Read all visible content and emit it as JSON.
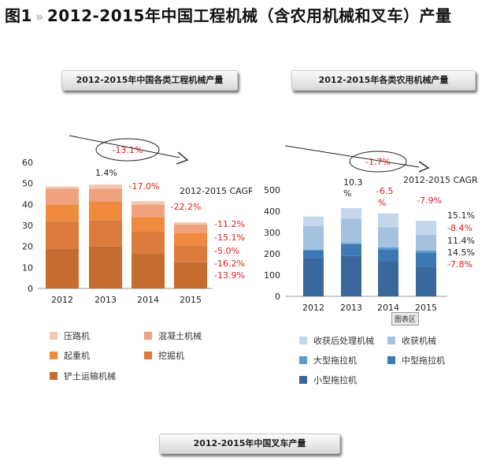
{
  "page": {
    "title_prefix": "图1",
    "title_sep": "»",
    "title_text": "2012-2015年中国工程机械（含农用机械和叉车）产量"
  },
  "tooltip": "图表区",
  "colors": {
    "construction": [
      "#f5c9b1",
      "#f0a17e",
      "#ef8a3e",
      "#db7c3c",
      "#c56c30"
    ],
    "agricultural": [
      "#c4d7ea",
      "#a4c1e0",
      "#5b9bd0",
      "#3c79b4",
      "#3a689d"
    ],
    "growth": "#e02020"
  },
  "chart_data": [
    {
      "type": "bar",
      "stacked": true,
      "title": "2012-2015年中国各类工程机械产量",
      "categories": [
        "2012",
        "2013",
        "2014",
        "2015"
      ],
      "yticks": [
        "0",
        "10",
        "20",
        "30",
        "40",
        "50",
        "60"
      ],
      "ylim": [
        0,
        60
      ],
      "series": [
        {
          "name": "铲土运输机械",
          "values": [
            19,
            20,
            16.5,
            12.5
          ]
        },
        {
          "name": "挖掘机",
          "values": [
            13,
            12.5,
            10.5,
            8
          ]
        },
        {
          "name": "起重机",
          "values": [
            8,
            9,
            7,
            6
          ]
        },
        {
          "name": "混凝土机械",
          "values": [
            7.5,
            6,
            6,
            4
          ]
        },
        {
          "name": "压路机",
          "values": [
            1,
            2,
            1.5,
            1
          ]
        }
      ],
      "legend": [
        "压路机",
        "混凝土机械",
        "起重机",
        "挖掘机",
        "铲土运输机械"
      ],
      "annotations": {
        "overall": "-13.1%",
        "yoy": [
          "1.4%",
          "-17.0%",
          "-22.2%"
        ],
        "cagr_label": "2012-2015 CAGR",
        "cagr": [
          "-11.2%",
          "-15.1%",
          "-5.0%",
          "-16.2%",
          "-13.9%"
        ]
      }
    },
    {
      "type": "bar",
      "stacked": true,
      "title": "2012-2015年各类农用机械产量",
      "categories": [
        "2012",
        "2013",
        "2014",
        "2015"
      ],
      "yticks": [
        "0",
        "100",
        "200",
        "300",
        "400",
        "500"
      ],
      "ylim": [
        0,
        500
      ],
      "series": [
        {
          "name": "小型拖拉机",
          "values": [
            180,
            190,
            165,
            140
          ]
        },
        {
          "name": "中型拖拉机",
          "values": [
            35,
            55,
            55,
            65
          ]
        },
        {
          "name": "大型拖拉机",
          "values": [
            5,
            5,
            10,
            10
          ]
        },
        {
          "name": "收获机械",
          "values": [
            110,
            115,
            95,
            75
          ]
        },
        {
          "name": "收获后处理机械",
          "values": [
            45,
            50,
            65,
            65
          ]
        }
      ],
      "legend": [
        "收获后处理机械",
        "收获机械",
        "大型拖拉机",
        "中型拖拉机",
        "小型拖拉机"
      ],
      "annotations": {
        "overall": "-1.7%",
        "yoy_2013": "10.3",
        "yoy_2013_unit": "%",
        "yoy_2014": "-6.5",
        "yoy_2014_unit": "%",
        "yoy_2015": "-7.9%",
        "cagr_label": "2012-2015 CAGR",
        "cagr": [
          "15.1%",
          "-8.4%",
          "11.4%",
          "14.5%",
          "-7.8%"
        ]
      }
    },
    {
      "type": "bar",
      "title": "2012-2015年中国叉车产量"
    }
  ]
}
